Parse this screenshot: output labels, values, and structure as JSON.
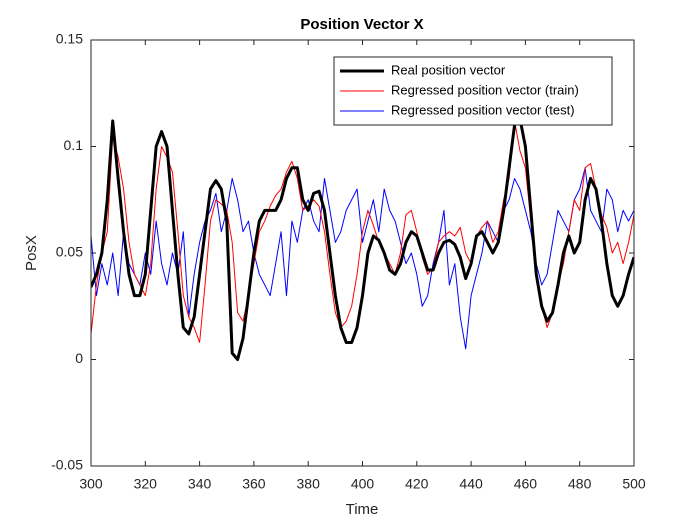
{
  "chart_data": {
    "type": "line",
    "title": "Position Vector X",
    "xlabel": "Time",
    "ylabel": "PosX",
    "x": [
      300,
      302,
      304,
      306,
      308,
      310,
      312,
      314,
      316,
      318,
      320,
      322,
      324,
      326,
      328,
      330,
      332,
      334,
      336,
      338,
      340,
      342,
      344,
      346,
      348,
      350,
      352,
      354,
      356,
      358,
      360,
      362,
      364,
      366,
      368,
      370,
      372,
      374,
      376,
      378,
      380,
      382,
      384,
      386,
      388,
      390,
      392,
      394,
      396,
      398,
      400,
      402,
      404,
      406,
      408,
      410,
      412,
      414,
      416,
      418,
      420,
      422,
      424,
      426,
      428,
      430,
      432,
      434,
      436,
      438,
      440,
      442,
      444,
      446,
      448,
      450,
      452,
      454,
      456,
      458,
      460,
      462,
      464,
      466,
      468,
      470,
      472,
      474,
      476,
      478,
      480,
      482,
      484,
      486,
      488,
      490,
      492,
      494,
      496,
      498,
      500
    ],
    "series": [
      {
        "name": "Real position vector",
        "color": "#000000",
        "width": 3,
        "values": [
          0.034,
          0.04,
          0.05,
          0.075,
          0.112,
          0.085,
          0.06,
          0.04,
          0.03,
          0.03,
          0.04,
          0.07,
          0.1,
          0.107,
          0.1,
          0.07,
          0.04,
          0.015,
          0.012,
          0.02,
          0.04,
          0.06,
          0.08,
          0.084,
          0.08,
          0.065,
          0.003,
          0,
          0.01,
          0.03,
          0.05,
          0.065,
          0.07,
          0.07,
          0.07,
          0.075,
          0.085,
          0.09,
          0.09,
          0.075,
          0.07,
          0.078,
          0.079,
          0.07,
          0.05,
          0.03,
          0.015,
          0.008,
          0.008,
          0.015,
          0.03,
          0.05,
          0.058,
          0.056,
          0.05,
          0.042,
          0.04,
          0.045,
          0.055,
          0.06,
          0.058,
          0.05,
          0.042,
          0.042,
          0.05,
          0.055,
          0.056,
          0.054,
          0.048,
          0.038,
          0.045,
          0.058,
          0.06,
          0.055,
          0.05,
          0.055,
          0.07,
          0.09,
          0.11,
          0.113,
          0.1,
          0.07,
          0.04,
          0.025,
          0.018,
          0.022,
          0.035,
          0.05,
          0.058,
          0.05,
          0.055,
          0.075,
          0.085,
          0.08,
          0.065,
          0.045,
          0.03,
          0.025,
          0.03,
          0.04,
          0.048
        ]
      },
      {
        "name": "Regressed position vector (train)",
        "color": "#ff0000",
        "width": 1,
        "values": [
          0.012,
          0.035,
          0.05,
          0.06,
          0.105,
          0.095,
          0.08,
          0.055,
          0.04,
          0.035,
          0.03,
          0.045,
          0.08,
          0.1,
          0.095,
          0.088,
          0.06,
          0.03,
          0.02,
          0.015,
          0.008,
          0.035,
          0.065,
          0.075,
          0.073,
          0.07,
          0.055,
          0.022,
          0.018,
          0.03,
          0.045,
          0.06,
          0.065,
          0.072,
          0.077,
          0.08,
          0.088,
          0.093,
          0.085,
          0.07,
          0.072,
          0.075,
          0.072,
          0.06,
          0.04,
          0.022,
          0.015,
          0.018,
          0.025,
          0.04,
          0.06,
          0.07,
          0.063,
          0.055,
          0.05,
          0.045,
          0.04,
          0.05,
          0.068,
          0.07,
          0.06,
          0.048,
          0.04,
          0.043,
          0.055,
          0.058,
          0.06,
          0.058,
          0.062,
          0.05,
          0.045,
          0.058,
          0.062,
          0.065,
          0.055,
          0.06,
          0.075,
          0.085,
          0.112,
          0.098,
          0.09,
          0.065,
          0.04,
          0.025,
          0.015,
          0.022,
          0.035,
          0.045,
          0.06,
          0.075,
          0.07,
          0.09,
          0.092,
          0.08,
          0.068,
          0.062,
          0.05,
          0.055,
          0.045,
          0.055,
          0.068
        ]
      },
      {
        "name": "Regressed position vector (test)",
        "color": "#0000ff",
        "width": 1,
        "values": [
          0.058,
          0.03,
          0.045,
          0.035,
          0.05,
          0.03,
          0.06,
          0.045,
          0.04,
          0.035,
          0.05,
          0.04,
          0.065,
          0.045,
          0.035,
          0.05,
          0.04,
          0.06,
          0.02,
          0.04,
          0.055,
          0.065,
          0.07,
          0.078,
          0.06,
          0.07,
          0.085,
          0.075,
          0.06,
          0.065,
          0.05,
          0.04,
          0.035,
          0.03,
          0.045,
          0.06,
          0.03,
          0.065,
          0.055,
          0.07,
          0.075,
          0.065,
          0.06,
          0.085,
          0.07,
          0.055,
          0.06,
          0.07,
          0.075,
          0.08,
          0.055,
          0.065,
          0.075,
          0.06,
          0.08,
          0.07,
          0.065,
          0.055,
          0.045,
          0.05,
          0.04,
          0.025,
          0.03,
          0.045,
          0.055,
          0.07,
          0.035,
          0.045,
          0.02,
          0.005,
          0.03,
          0.04,
          0.05,
          0.065,
          0.06,
          0.055,
          0.07,
          0.075,
          0.085,
          0.08,
          0.07,
          0.06,
          0.045,
          0.035,
          0.04,
          0.055,
          0.07,
          0.065,
          0.06,
          0.075,
          0.08,
          0.09,
          0.07,
          0.065,
          0.06,
          0.08,
          0.075,
          0.06,
          0.07,
          0.065,
          0.07
        ]
      }
    ],
    "xlim": [
      300,
      500
    ],
    "xticks": [
      300,
      320,
      340,
      360,
      380,
      400,
      420,
      440,
      460,
      480,
      500
    ],
    "ylim": [
      -0.05,
      0.15
    ],
    "yticks": [
      -0.05,
      0,
      0.05,
      0.1,
      0.15
    ],
    "grid": false,
    "legend": "northeast"
  }
}
